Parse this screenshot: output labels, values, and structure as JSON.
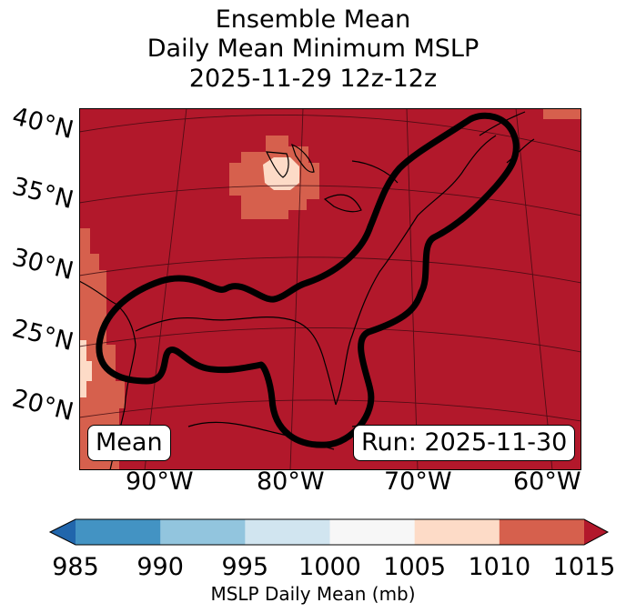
{
  "figure": {
    "title_lines": [
      "Ensemble Mean",
      "Daily Mean Minimum MSLP",
      "2025-11-29 12z-12z"
    ],
    "mean_label": "Mean",
    "run_label": "Run: 2025-11-30"
  },
  "map": {
    "lat_labels": [
      "40°N",
      "35°N",
      "30°N",
      "25°N",
      "20°N"
    ],
    "lon_labels": [
      "90°W",
      "80°W",
      "70°W",
      "60°W"
    ],
    "background_color": "#b2182b",
    "contour_color": "#000000"
  },
  "colorbar": {
    "label": "MSLP Daily Mean (mb)",
    "ticks": [
      "985",
      "990",
      "995",
      "1000",
      "1005",
      "1010",
      "1015"
    ],
    "colors": [
      "#2166ac",
      "#4393c3",
      "#92c5de",
      "#d1e5f0",
      "#f7f7f7",
      "#fddbc7",
      "#d6604d",
      "#b2182b"
    ],
    "extend": "both"
  }
}
